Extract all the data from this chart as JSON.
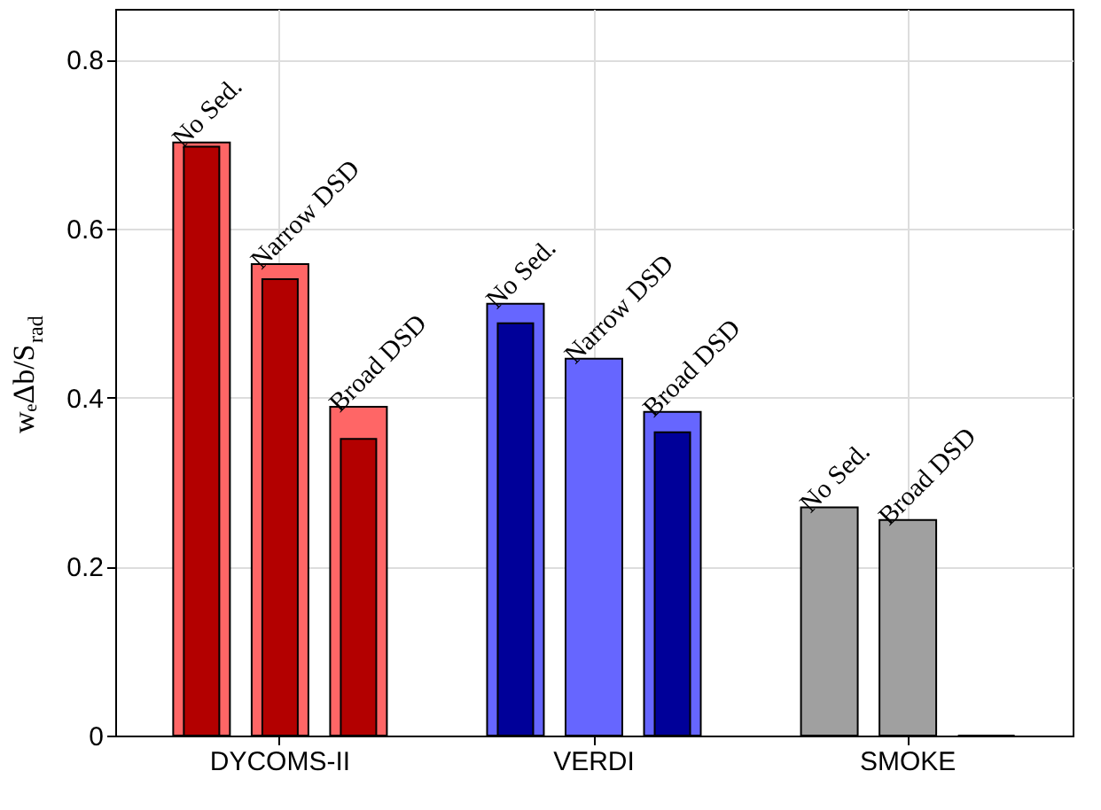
{
  "chart_data": {
    "type": "bar",
    "ylabel": "wₑΔb/S$_{rad}$",
    "categories": [
      "DYCOMS-II",
      "VERDI",
      "SMOKE"
    ],
    "series": [
      {
        "colors": [
          "#ff6666",
          "#6666ff",
          "#a0a0a0"
        ],
        "values": [
          0.702,
          0.511,
          0.27
        ],
        "value_labels": [
          "No Sed.",
          "No Sed.",
          "No Sed."
        ]
      },
      {
        "colors": [
          "#ff6666",
          "#6666ff",
          "#a0a0a0"
        ],
        "values": [
          0.558,
          0.446,
          0.255
        ],
        "value_labels": [
          "Narrow DSD",
          "Narrow DSD",
          "Broad DSD"
        ]
      },
      {
        "colors": [
          "#ff6666",
          "#6666ff",
          "#a0a0a0"
        ],
        "values": [
          0.389,
          0.383,
          0
        ],
        "value_labels": [
          "Broad DSD",
          "Broad DSD",
          null
        ]
      },
      {
        "colors": [
          "#b30000",
          "#000099",
          "#a0a0a0"
        ],
        "values": [
          0.697,
          0.488,
          null
        ]
      },
      {
        "colors": [
          "#b30000",
          "#000099",
          "#a0a0a0"
        ],
        "values": [
          0.54,
          null,
          null
        ]
      },
      {
        "colors": [
          "#b30000",
          "#000099",
          "#a0a0a0"
        ],
        "values": [
          0.351,
          0.359,
          null
        ]
      }
    ],
    "ylim": [
      0,
      0.86
    ],
    "yticks": [
      0,
      0.2,
      0.4,
      0.6,
      0.8
    ],
    "grid": true
  }
}
